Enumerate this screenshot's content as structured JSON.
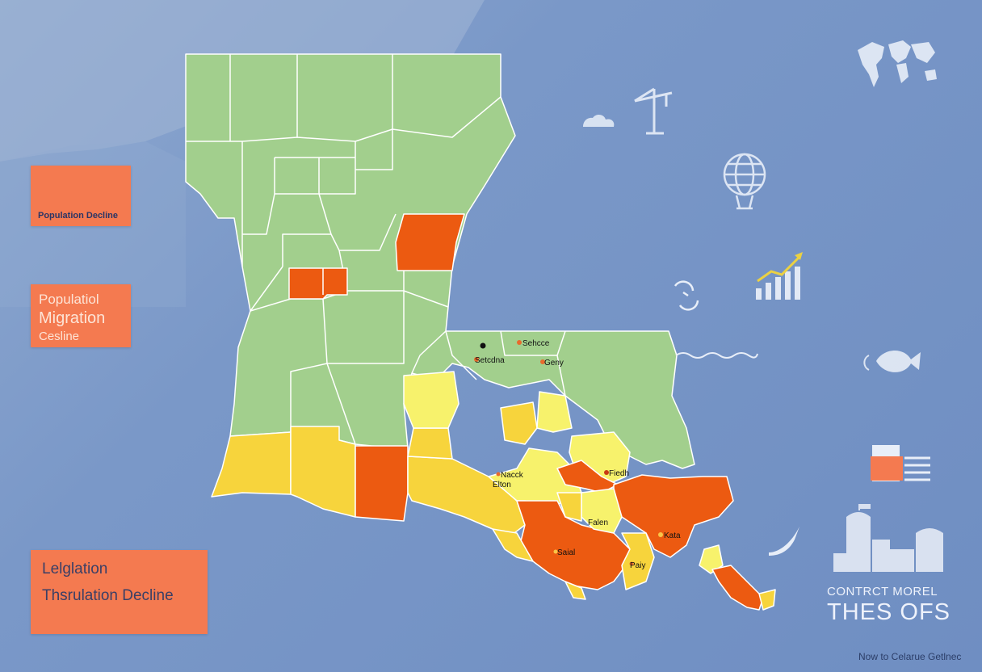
{
  "legend_cards": {
    "population_decline": {
      "label": "Population Decline"
    },
    "migration": {
      "line1": "Populatiol",
      "line2": "Migration",
      "line3": "Cesline"
    },
    "legislation": {
      "line1": "Lelglation",
      "line2": "Thsrulation Decline"
    }
  },
  "corner_text": {
    "line1": "CONTRCT MOREL",
    "line2": "THES OFS",
    "footer": "Now to Celarue Getlnec"
  },
  "city_labels": [
    "Sehcce",
    "Setcdna",
    "Geny",
    "Nacck",
    "Elton",
    "Fiedh",
    "Falen",
    "Kata",
    "Saial",
    "Paiy"
  ],
  "colors": {
    "water": "#7a98c8",
    "region_stable": "#a2cf8d",
    "region_light_decline": "#f7f26c",
    "region_moderate_decline": "#f7d43c",
    "region_high_decline": "#ec5a11",
    "legend_card": "#f47a50",
    "icon_white": "#e8eef8"
  },
  "icons": [
    "world-map-icon",
    "cloud-icon",
    "crane-icon",
    "globe-icon",
    "chart-trend-icon",
    "refresh-icon",
    "wave-icon",
    "fish-icon",
    "document-list-icon",
    "city-buildings-icon",
    "bird-icon",
    "truck-icon",
    "van-icon",
    "car-icon",
    "animal-icon"
  ]
}
